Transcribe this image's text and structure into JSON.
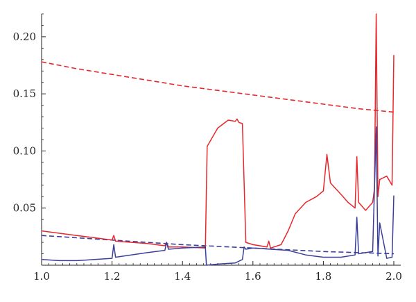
{
  "chart_data": {
    "type": "line",
    "title": "",
    "xlabel": "",
    "ylabel": "",
    "xlim": [
      1.0,
      2.0
    ],
    "ylim": [
      0.0,
      0.22
    ],
    "grid": false,
    "legend": "none",
    "x_ticks": [
      1.0,
      1.2,
      1.4,
      1.6,
      1.8,
      2.0
    ],
    "x_tick_labels": [
      "1.0",
      "1.2",
      "1.4",
      "1.6",
      "1.8",
      "2.0"
    ],
    "y_ticks": [
      0.05,
      0.1,
      0.15,
      0.2
    ],
    "y_tick_labels": [
      "0.05",
      "0.10",
      "0.15",
      "0.20"
    ],
    "series": [
      {
        "color": "#e8262b",
        "style": "dashed",
        "x": [
          1.0,
          1.1,
          1.2,
          1.3,
          1.4,
          1.5,
          1.6,
          1.7,
          1.8,
          1.9,
          2.0
        ],
        "y": [
          0.178,
          0.172,
          0.167,
          0.162,
          0.157,
          0.153,
          0.149,
          0.145,
          0.141,
          0.137,
          0.134
        ]
      },
      {
        "color": "#3a3f9a",
        "style": "dashed",
        "x": [
          1.0,
          1.2,
          1.4,
          1.6,
          1.8,
          2.0
        ],
        "y": [
          0.026,
          0.022,
          0.018,
          0.015,
          0.012,
          0.01
        ]
      },
      {
        "color": "#e8262b",
        "style": "solid",
        "x": [
          1.0,
          1.1,
          1.2,
          1.205,
          1.21,
          1.3,
          1.35,
          1.355,
          1.36,
          1.4,
          1.465,
          1.47,
          1.5,
          1.53,
          1.55,
          1.555,
          1.56,
          1.57,
          1.58,
          1.6,
          1.64,
          1.645,
          1.65,
          1.68,
          1.7,
          1.72,
          1.75,
          1.78,
          1.8,
          1.81,
          1.82,
          1.85,
          1.87,
          1.89,
          1.895,
          1.9,
          1.92,
          1.94,
          1.945,
          1.95,
          1.955,
          1.96,
          1.98,
          1.995,
          2.0
        ],
        "y": [
          0.03,
          0.026,
          0.022,
          0.026,
          0.021,
          0.019,
          0.017,
          0.02,
          0.016,
          0.016,
          0.015,
          0.104,
          0.12,
          0.127,
          0.126,
          0.128,
          0.125,
          0.124,
          0.02,
          0.018,
          0.016,
          0.021,
          0.015,
          0.018,
          0.03,
          0.045,
          0.055,
          0.06,
          0.065,
          0.097,
          0.072,
          0.062,
          0.055,
          0.05,
          0.095,
          0.055,
          0.048,
          0.055,
          0.067,
          0.22,
          0.06,
          0.075,
          0.078,
          0.07,
          0.184
        ]
      },
      {
        "color": "#3a3f9a",
        "style": "solid",
        "x": [
          1.0,
          1.05,
          1.1,
          1.15,
          1.2,
          1.205,
          1.21,
          1.3,
          1.35,
          1.355,
          1.36,
          1.4,
          1.465,
          1.468,
          1.5,
          1.55,
          1.57,
          1.575,
          1.58,
          1.6,
          1.7,
          1.75,
          1.8,
          1.85,
          1.89,
          1.895,
          1.9,
          1.94,
          1.95,
          1.955,
          1.96,
          1.98,
          1.995,
          2.0
        ],
        "y": [
          0.005,
          0.004,
          0.004,
          0.005,
          0.006,
          0.018,
          0.007,
          0.011,
          0.013,
          0.02,
          0.014,
          0.015,
          0.016,
          0.0,
          0.001,
          0.002,
          0.005,
          0.016,
          0.014,
          0.015,
          0.013,
          0.009,
          0.007,
          0.007,
          0.009,
          0.042,
          0.01,
          0.012,
          0.121,
          0.008,
          0.037,
          0.006,
          0.007,
          0.061
        ]
      }
    ]
  }
}
